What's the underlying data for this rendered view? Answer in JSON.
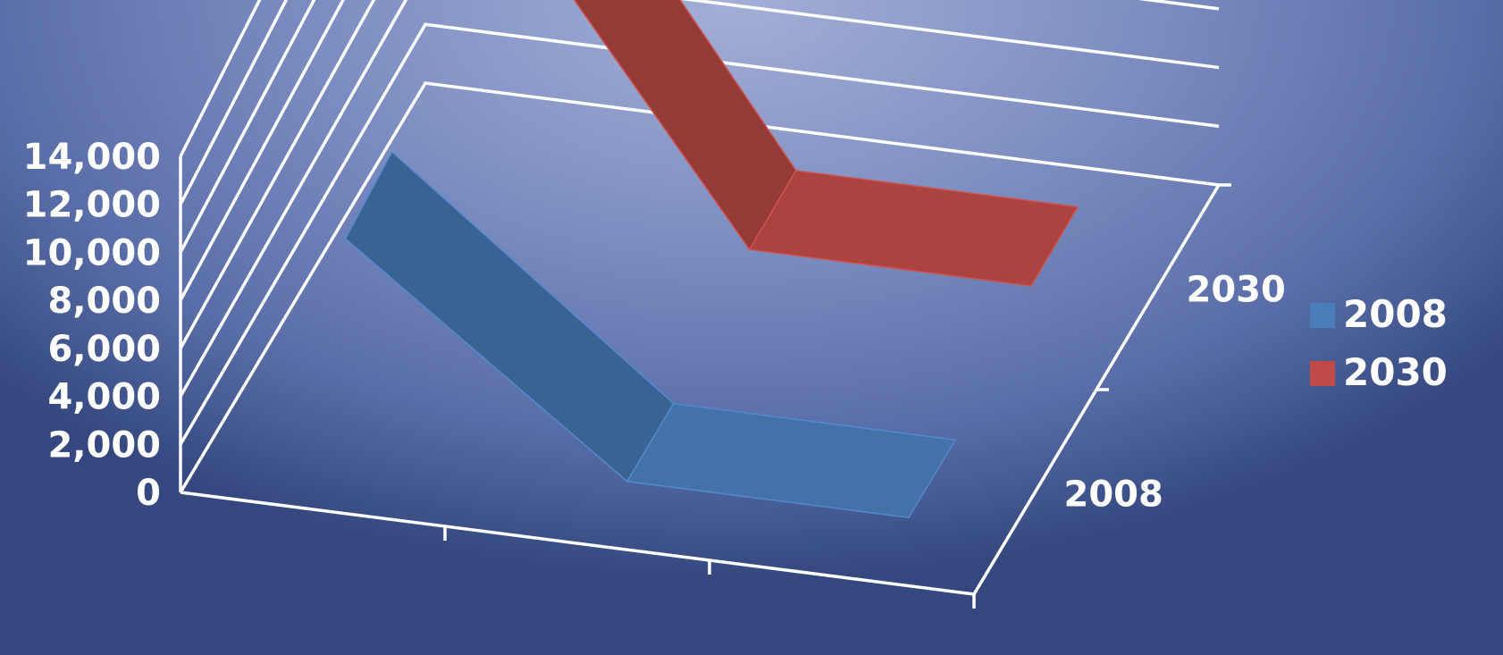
{
  "chart_data": {
    "type": "line",
    "subtype": "3d-ribbon",
    "title": "",
    "xlabel": "",
    "ylabel": "",
    "categories": [
      "",
      "",
      ""
    ],
    "series": [
      {
        "name": "2008",
        "color": "#4a7ebb",
        "values": [
          8400,
          0,
          0
        ]
      },
      {
        "name": "2030",
        "color": "#be4b48",
        "values": [
          14300,
          1000,
          1000
        ]
      }
    ],
    "depth_labels": [
      "2008",
      "2030"
    ],
    "y_ticks": [
      "0",
      "2,000",
      "4,000",
      "6,000",
      "8,000",
      "10,000",
      "12,000",
      "14,000"
    ],
    "ylim": [
      0,
      14000
    ],
    "grid": true,
    "legend": {
      "placement": "right",
      "entries": [
        "2008",
        "2030"
      ]
    }
  }
}
